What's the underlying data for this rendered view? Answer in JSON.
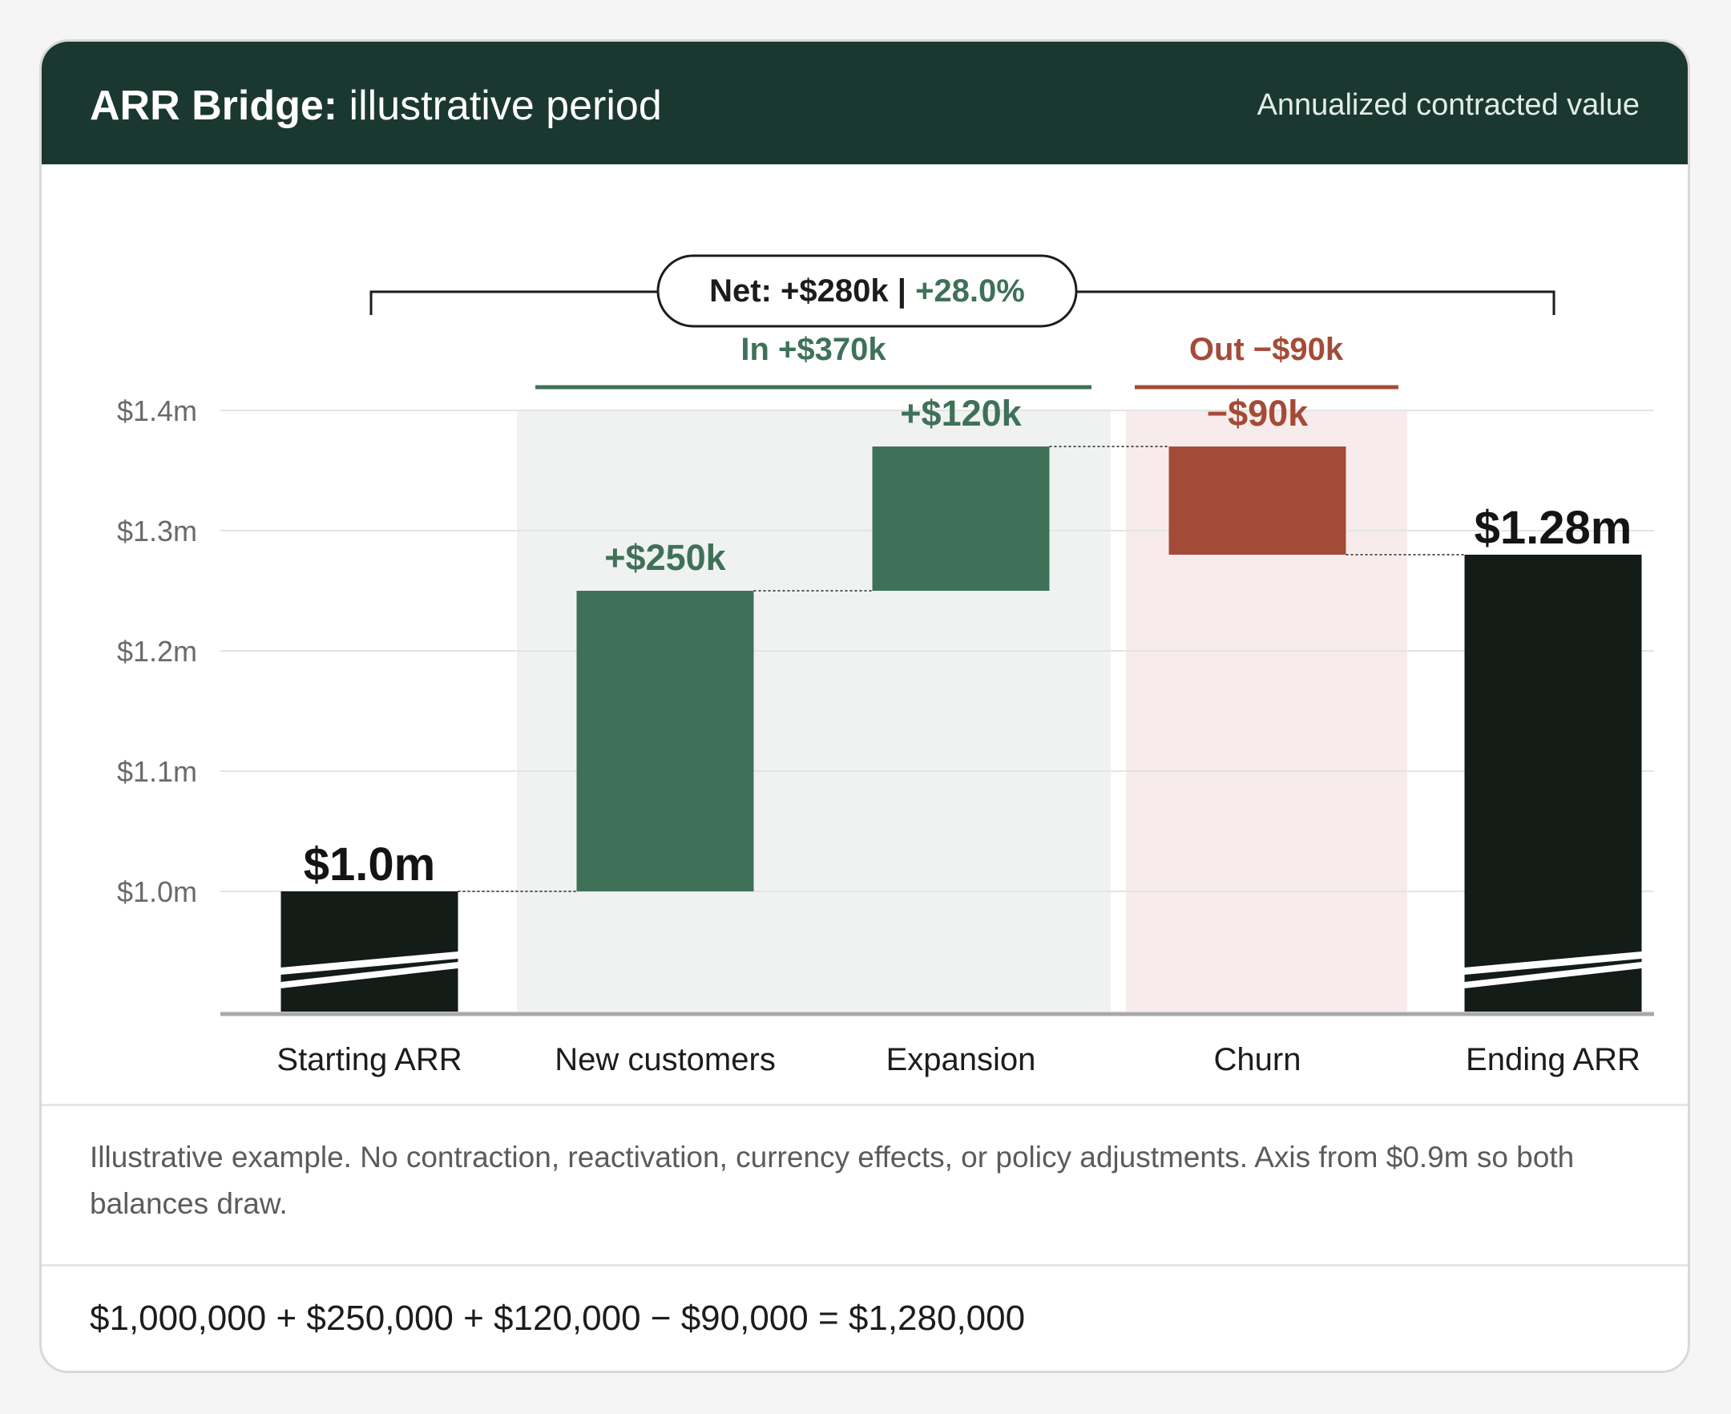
{
  "header": {
    "title_strong": "ARR Bridge:",
    "title_rest": " illustrative period",
    "note": "Annualized contracted value"
  },
  "net_label": {
    "prefix": "Net: +$280k | ",
    "pct": "+28.0%"
  },
  "groups": {
    "in_label": "In +$370k",
    "out_label": "Out −$90k"
  },
  "chart_data": {
    "type": "waterfall",
    "ylim": [
      0.9,
      1.4
    ],
    "yticks": [
      1.0,
      1.1,
      1.2,
      1.3,
      1.4
    ],
    "ytick_labels": [
      "$1.0m",
      "$1.1m",
      "$1.2m",
      "$1.3m",
      "$1.4m"
    ],
    "grid": true,
    "steps": [
      {
        "category": "Starting ARR",
        "kind": "total",
        "base": 0.9,
        "top": 1.0,
        "label": "$1.0m",
        "color": "#141c18"
      },
      {
        "category": "New customers",
        "kind": "increase",
        "base": 1.0,
        "top": 1.25,
        "label": "+$250k",
        "color": "#3f7159"
      },
      {
        "category": "Expansion",
        "kind": "increase",
        "base": 1.25,
        "top": 1.37,
        "label": "+$120k",
        "color": "#3f7159"
      },
      {
        "category": "Churn",
        "kind": "decrease",
        "base": 1.28,
        "top": 1.37,
        "label": "−$90k",
        "color": "#a44b38"
      },
      {
        "category": "Ending ARR",
        "kind": "total",
        "base": 0.9,
        "top": 1.28,
        "label": "$1.28m",
        "color": "#141c18"
      }
    ]
  },
  "colors": {
    "positive": "#3f7159",
    "negative": "#a44b38",
    "balance": "#141c18",
    "in_band": "#f0f2f1",
    "out_band": "#f7eceb"
  },
  "footnote": "Illustrative example. No contraction, reactivation, currency effects, or policy adjustments. Axis from $0.9m so both balances draw.",
  "equation": "$1,000,000 + $250,000 + $120,000 − $90,000 = $1,280,000"
}
